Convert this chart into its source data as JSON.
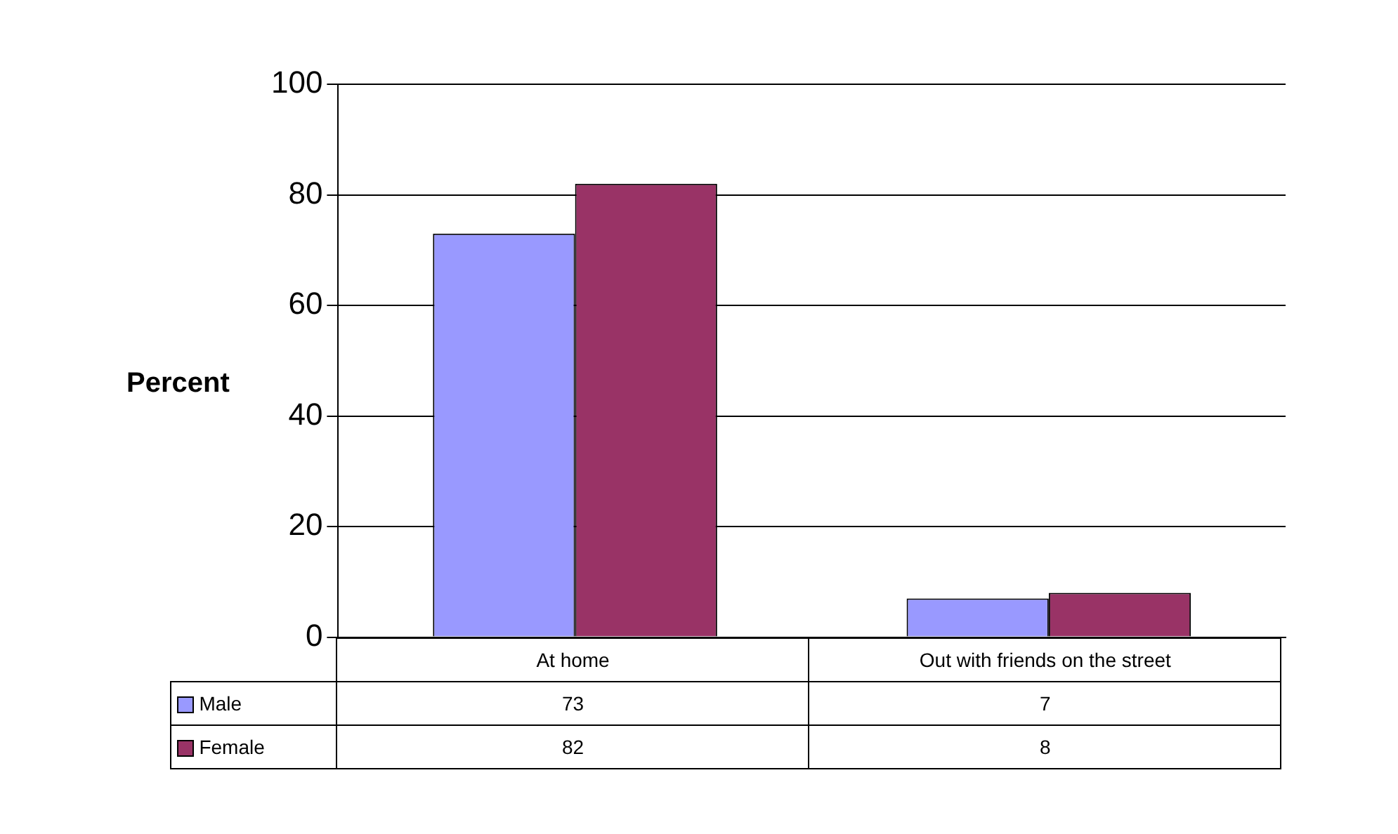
{
  "chart_data": {
    "type": "bar",
    "ylabel": "Percent",
    "categories": [
      "At home",
      "Out with friends on the street"
    ],
    "series": [
      {
        "name": "Male",
        "color": "#9999ff",
        "values": [
          73,
          7
        ]
      },
      {
        "name": "Female",
        "color": "#993366",
        "values": [
          82,
          8
        ]
      }
    ],
    "ylim": [
      0,
      100
    ],
    "yticks": [
      0,
      20,
      40,
      60,
      80,
      100
    ],
    "grid": "y",
    "legend": "bottom",
    "data_labels": true
  }
}
